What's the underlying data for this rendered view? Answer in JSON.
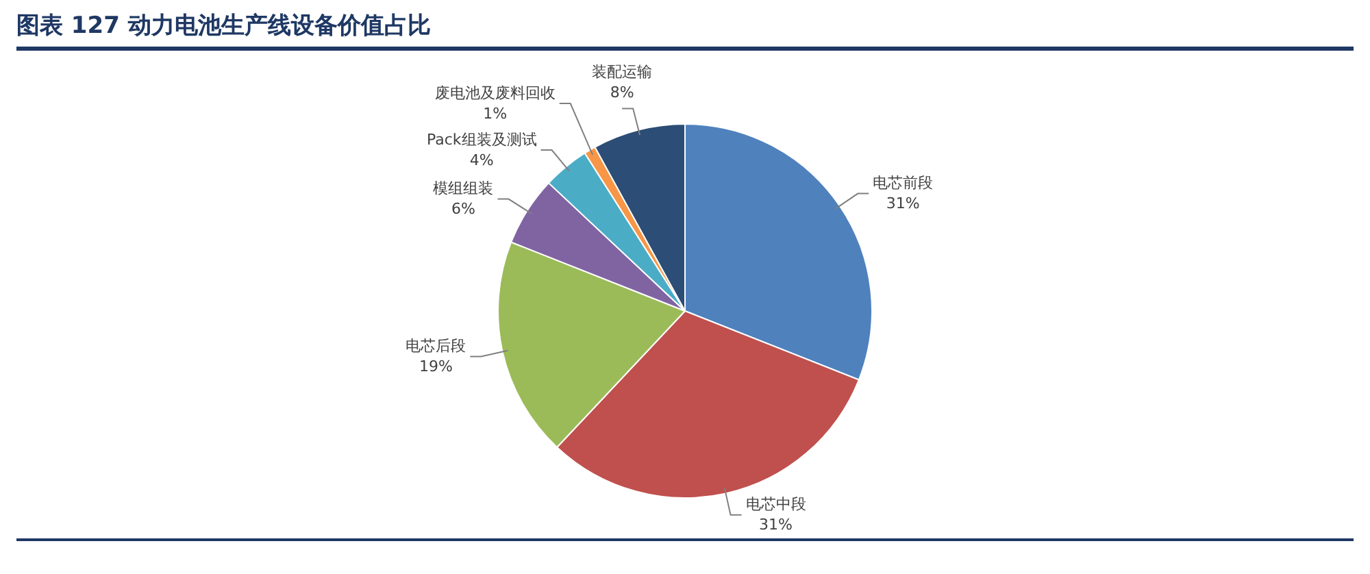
{
  "chart_data": {
    "type": "pie",
    "title": "图表 127 动力电池生产线设备价值占比",
    "categories": [
      "电芯前段",
      "电芯中段",
      "电芯后段",
      "模组组装",
      "Pack组装及测试",
      "废电池及废料回收",
      "装配运输"
    ],
    "values": [
      31,
      31,
      19,
      6,
      4,
      1,
      8
    ],
    "value_labels": [
      "31%",
      "31%",
      "19%",
      "6%",
      "4%",
      "1%",
      "8%"
    ],
    "colors": [
      "#4f81bd",
      "#c0504d",
      "#9bbb59",
      "#8064a2",
      "#4bacc6",
      "#f79646",
      "#2c4d75"
    ],
    "legend": false
  }
}
